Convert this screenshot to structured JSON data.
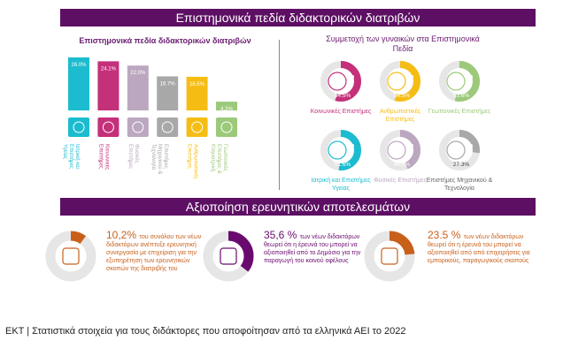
{
  "banner_top": "Επιστημονικά πεδία διδακτορικών διατριβών",
  "banner_bottom": "Αξιοποίηση ερευνητικών αποτελεσμάτων",
  "bar_chart": {
    "title": "Επιστημονικά πεδία διδακτορικών διατριβών"
  },
  "donut_section": {
    "title": "Συμμετοχή των γυναικών στα Επιστημονικά Πεδία"
  },
  "chart_data": [
    {
      "type": "bar",
      "title": "Επιστημονικά πεδία διδακτορικών διατριβών",
      "categories": [
        "Ιατρική και Επιστήμες Υγείας",
        "Κοινωνικές Επιστήμες",
        "Φυσικές Επιστήμες",
        "Επιστήμες Μηχανικού & Τεχνολογία",
        "Ανθρωπιστικές Επιστήμες",
        "Γεωπονικές Επιστήμες & Κτηνιατρική"
      ],
      "values": [
        26.0,
        24.1,
        22.0,
        16.7,
        16.5,
        4.3
      ],
      "value_labels": [
        "26.0%",
        "24.1%",
        "22.0%",
        "16.7%",
        "16.5%",
        "4.3%"
      ],
      "colors": [
        "#1bbccf",
        "#c4307a",
        "#bca7c0",
        "#a8a8a8",
        "#f5bd14",
        "#9cc97a"
      ],
      "icons": [
        "dna-icon",
        "people-network-icon",
        "atom-icon",
        "circuit-icon",
        "person-bust-icon",
        "field-plant-icon"
      ]
    },
    {
      "type": "pie",
      "title": "Συμμετοχή των γυναικών στα Επιστημονικά Πεδία",
      "items": [
        {
          "label": "Κοινωνικές Επιστήμες",
          "value": 54.5,
          "text": "54.5%",
          "color": "#c4307a",
          "icon": "people-network-icon"
        },
        {
          "label": "Ανθρωπιστικές Επιστήμες",
          "value": 54.5,
          "text": "54.5%",
          "color": "#f5bd14",
          "icon": "person-bust-icon"
        },
        {
          "label": "Γεωπονικές Επιστήμες",
          "value": 53.6,
          "text": "53.6%",
          "color": "#9cc97a",
          "icon": "field-plant-icon"
        },
        {
          "label": "Ιατρική και Επιστήμες Υγείας",
          "value": 51.6,
          "text": "51.6%",
          "color": "#1bbccf",
          "icon": "dna-icon"
        },
        {
          "label": "Φυσικές Επιστήμες",
          "value": 43.9,
          "text": "43.9%",
          "color": "#bca7c0",
          "icon": "atom-icon"
        },
        {
          "label": "Επιστήμες Μηχανικού & Τεχνολογία",
          "value": 27.3,
          "text": "27.3%",
          "color": "#a8a8a8",
          "icon": "circuit-icon"
        }
      ]
    },
    {
      "type": "pie",
      "title": "Αξιοποίηση ερευνητικών αποτελεσμάτων",
      "items": [
        {
          "value": 10.2,
          "text": "10,2%",
          "desc": "του συνόλου των νέων διδακτόρων ανέπτυξε ερευνητική συνεργασία με επιχείριση για την εξυπηρέτηση των ερευνητικών σκοπών της διατριβής του",
          "color": "#c8601a",
          "icon": "handshake-icon"
        },
        {
          "value": 35.6,
          "text": "35,6 %",
          "desc": "των νέων διδακτόρων θεωρεί ότι η έρευνά του μπορεί να αξιοποιηθεί από το Δημόσιο για την παραγωγή του κοινού οφέλους",
          "color": "#6a0a6e",
          "icon": "hands-globe-icon"
        },
        {
          "value": 23.5,
          "text": "23.5 %",
          "desc": "των νέων διδακτόρων θεωρεί ότι η έρευνά του μπορεί να αξιοποιηθεί από από επιχειρήσεις για εμπορικούς, παραγωγικούς σκοπούς",
          "color": "#c8601a",
          "icon": "buildings-icon"
        }
      ]
    }
  ],
  "footer": "ΕΚΤ | Στατιστικά στοιχεία για τους διδάκτορες που αποφοίτησαν από τα ελληνικά ΑΕΙ το 2022"
}
